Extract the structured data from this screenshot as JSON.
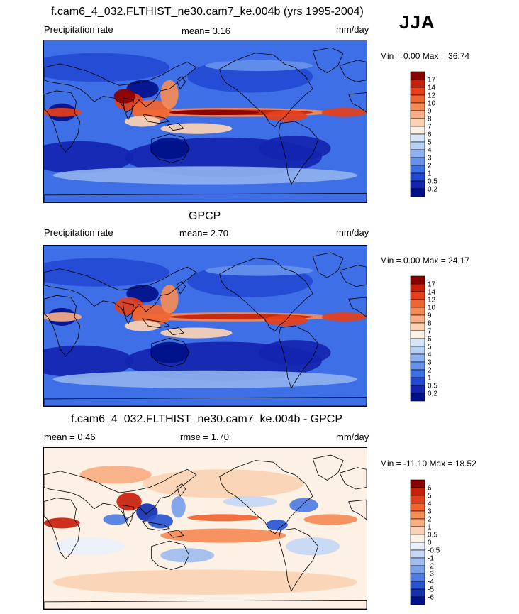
{
  "season": "JJA",
  "panels": [
    {
      "title": "f.cam6_4_032.FLTHIST_ne30.cam7_ke.004b (yrs 1995-2004)",
      "left_label": "Precipitation rate",
      "stat1": "mean=   3.16",
      "stat2": "",
      "units": "mm/day",
      "minmax": "Min =   0.00 Max =  36.74",
      "levels": [
        "17",
        "14",
        "12",
        "10",
        "9",
        "8",
        "7",
        "6",
        "5",
        "4",
        "3",
        "2",
        "1",
        "0.5",
        "0.2"
      ],
      "colors": [
        "#8b0000",
        "#c8200b",
        "#e5401a",
        "#f26530",
        "#f58b55",
        "#f8ae82",
        "#fbd2b4",
        "#fdf0e4",
        "#d6e6fa",
        "#b6d0f6",
        "#8fb1f0",
        "#6692ec",
        "#3f6fe6",
        "#2349d4",
        "#1224b0",
        "#00108a"
      ]
    },
    {
      "title": "GPCP",
      "left_label": "Precipitation rate",
      "stat1": "mean=   2.70",
      "stat2": "",
      "units": "mm/day",
      "minmax": "Min =   0.00 Max =  24.17",
      "levels": [
        "17",
        "14",
        "12",
        "10",
        "9",
        "8",
        "7",
        "6",
        "5",
        "4",
        "3",
        "2",
        "1",
        "0.5",
        "0.2"
      ],
      "colors": [
        "#8b0000",
        "#c8200b",
        "#e5401a",
        "#f26530",
        "#f58b55",
        "#f8ae82",
        "#fbd2b4",
        "#fdf0e4",
        "#d6e6fa",
        "#b6d0f6",
        "#8fb1f0",
        "#6692ec",
        "#3f6fe6",
        "#2349d4",
        "#1224b0",
        "#00108a"
      ]
    },
    {
      "title": "f.cam6_4_032.FLTHIST_ne30.cam7_ke.004b - GPCP",
      "left_label": "mean =   0.46",
      "stat1": "",
      "stat2": "rmse =   1.70",
      "units": "mm/day",
      "minmax": "Min = -11.10 Max =  18.52",
      "levels": [
        "6",
        "5",
        "4",
        "3",
        "2",
        "1",
        "0.5",
        "0",
        "-0.5",
        "-1",
        "-2",
        "-3",
        "-4",
        "-5",
        "-6"
      ],
      "colors": [
        "#8b0000",
        "#c8200b",
        "#e5401a",
        "#f26530",
        "#f58b55",
        "#f8ae82",
        "#fbd2b4",
        "#fdf0e4",
        "#e9f0fb",
        "#c6d8f6",
        "#9fbdf0",
        "#7aa0ea",
        "#4f7de4",
        "#2a56d2",
        "#1230b0",
        "#00108a"
      ]
    }
  ]
}
